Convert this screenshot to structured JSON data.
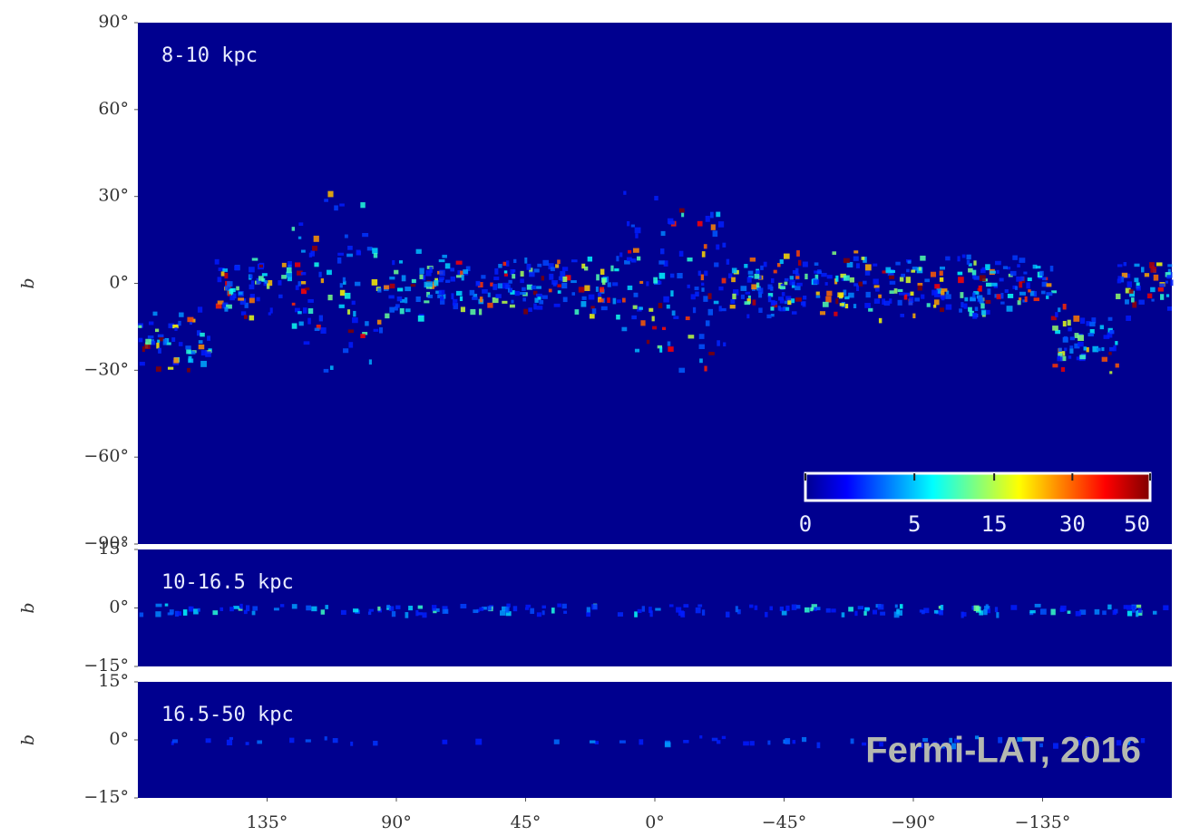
{
  "annotation": "Fermi-LAT, 2016",
  "chart_data": [
    {
      "type": "heatmap",
      "label": "8-10 kpc",
      "ylabel": "b",
      "ylim": [
        -90,
        90
      ],
      "yticks": [
        {
          "value": 90,
          "label": "90°"
        },
        {
          "value": 60,
          "label": "60°"
        },
        {
          "value": 30,
          "label": "30°"
        },
        {
          "value": 0,
          "label": "0°"
        },
        {
          "value": -30,
          "label": "−30°"
        },
        {
          "value": -60,
          "label": "−60°"
        },
        {
          "value": -90,
          "label": "−90°"
        }
      ],
      "colorbar": {
        "scale": "sqrt",
        "lim": [
          0,
          50
        ],
        "ticks": [
          0,
          5,
          15,
          30,
          50
        ]
      }
    },
    {
      "type": "heatmap",
      "label": "10-16.5 kpc",
      "ylabel": "b",
      "ylim": [
        -15,
        15
      ],
      "yticks": [
        {
          "value": 15,
          "label": "15°"
        },
        {
          "value": 0,
          "label": "0°"
        },
        {
          "value": -15,
          "label": "−15°"
        }
      ]
    },
    {
      "type": "heatmap",
      "label": "16.5-50 kpc",
      "ylabel": "b",
      "ylim": [
        -15,
        15
      ],
      "yticks": [
        {
          "value": 15,
          "label": "15°"
        },
        {
          "value": 0,
          "label": "0°"
        },
        {
          "value": -15,
          "label": "−15°"
        }
      ],
      "xlim": [
        180,
        -180
      ],
      "xticks": [
        {
          "value": 135,
          "label": "135°"
        },
        {
          "value": 90,
          "label": "90°"
        },
        {
          "value": 45,
          "label": "45°"
        },
        {
          "value": 0,
          "label": "0°"
        },
        {
          "value": -45,
          "label": "−45°"
        },
        {
          "value": -90,
          "label": "−90°"
        },
        {
          "value": -135,
          "label": "−135°"
        }
      ]
    }
  ]
}
